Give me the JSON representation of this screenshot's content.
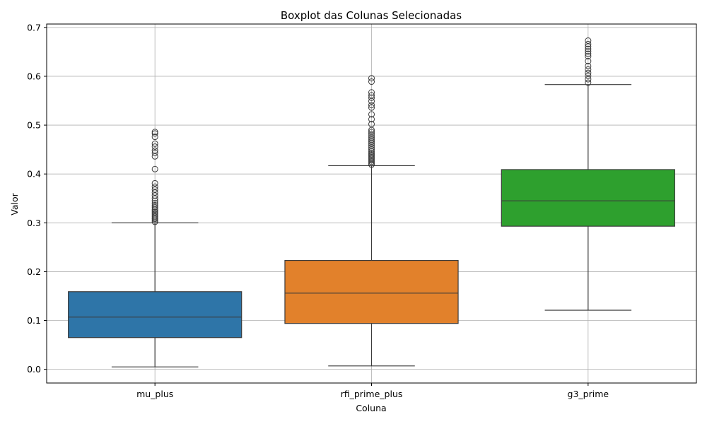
{
  "chart_data": {
    "type": "boxplot",
    "title": "Boxplot das Colunas Selecionadas",
    "xlabel": "Coluna",
    "ylabel": "Valor",
    "ylim": [
      -0.028,
      0.707
    ],
    "yticks": [
      0.0,
      0.1,
      0.2,
      0.3,
      0.4,
      0.5,
      0.6,
      0.7
    ],
    "ytick_labels": [
      "0.0",
      "0.1",
      "0.2",
      "0.3",
      "0.4",
      "0.5",
      "0.6",
      "0.7"
    ],
    "grid": true,
    "categories": [
      "mu_plus",
      "rfi_prime_plus",
      "g3_prime"
    ],
    "series": [
      {
        "category": "mu_plus",
        "color": "#2e75a8",
        "whisker_low": 0.005,
        "q1": 0.065,
        "median": 0.107,
        "q3": 0.159,
        "whisker_high": 0.3,
        "outliers": [
          0.302,
          0.305,
          0.308,
          0.31,
          0.313,
          0.316,
          0.319,
          0.322,
          0.325,
          0.328,
          0.332,
          0.336,
          0.34,
          0.345,
          0.35,
          0.356,
          0.362,
          0.368,
          0.374,
          0.381,
          0.41,
          0.436,
          0.443,
          0.448,
          0.456,
          0.462,
          0.476,
          0.483,
          0.486
        ]
      },
      {
        "category": "rfi_prime_plus",
        "color": "#e2812b",
        "whisker_low": 0.007,
        "q1": 0.094,
        "median": 0.156,
        "q3": 0.223,
        "whisker_high": 0.417,
        "outliers": [
          0.419,
          0.422,
          0.425,
          0.428,
          0.431,
          0.434,
          0.437,
          0.44,
          0.443,
          0.446,
          0.45,
          0.454,
          0.458,
          0.462,
          0.466,
          0.47,
          0.474,
          0.478,
          0.482,
          0.486,
          0.49,
          0.502,
          0.512,
          0.522,
          0.536,
          0.541,
          0.549,
          0.556,
          0.561,
          0.567,
          0.589,
          0.596
        ]
      },
      {
        "category": "g3_prime",
        "color": "#2ea02e",
        "whisker_low": 0.121,
        "q1": 0.293,
        "median": 0.345,
        "q3": 0.409,
        "whisker_high": 0.583,
        "outliers": [
          0.587,
          0.594,
          0.601,
          0.607,
          0.614,
          0.621,
          0.631,
          0.641,
          0.646,
          0.651,
          0.656,
          0.661,
          0.666,
          0.673
        ]
      }
    ]
  }
}
